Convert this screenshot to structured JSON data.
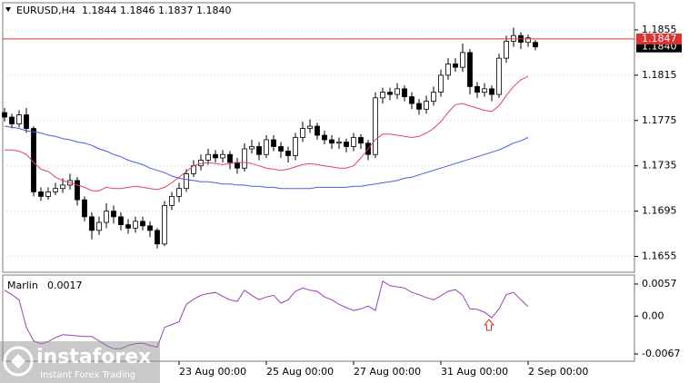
{
  "chart_data": [
    {
      "type": "candlestick",
      "title": "EURUSD,H4",
      "subtitle": "1.1844 1.1846 1.1837 1.1840",
      "up_color": "#ffffff",
      "down_color": "#000000",
      "edge_color": "#000000",
      "xlim": [
        -0.25,
        86.625
      ],
      "ylim": [
        1.1641,
        1.1879
      ],
      "yticks": [
        1.1655,
        1.1695,
        1.1735,
        1.1775,
        1.1815,
        1.1855
      ],
      "grid": true,
      "open": [
        1.1782,
        1.1778,
        1.1772,
        1.178,
        1.1768,
        1.1712,
        1.1708,
        1.1712,
        1.1715,
        1.1718,
        1.1722,
        1.1705,
        1.169,
        1.1678,
        1.1685,
        1.1695,
        1.169,
        1.1683,
        1.168,
        1.1686,
        1.1682,
        1.1678,
        1.1666,
        1.17,
        1.1708,
        1.1715,
        1.1728,
        1.1735,
        1.174,
        1.1745,
        1.1742,
        1.1745,
        1.1738,
        1.1733,
        1.175,
        1.1752,
        1.1745,
        1.1758,
        1.1752,
        1.1748,
        1.1744,
        1.176,
        1.1768,
        1.177,
        1.1762,
        1.1758,
        1.1755,
        1.1756,
        1.1752,
        1.176,
        1.1755,
        1.1745,
        1.1795,
        1.18,
        1.1798,
        1.1803,
        1.1796,
        1.179,
        1.1785,
        1.1792,
        1.18,
        1.1815,
        1.1825,
        1.1822,
        1.1835,
        1.1805,
        1.18,
        1.1803,
        1.1798,
        1.183,
        1.1845,
        1.185,
        1.1844,
        1.1844
      ],
      "high": [
        1.1786,
        1.1781,
        1.1784,
        1.1786,
        1.177,
        1.1716,
        1.1716,
        1.172,
        1.1724,
        1.1728,
        1.1725,
        1.1708,
        1.1694,
        1.169,
        1.1702,
        1.17,
        1.1694,
        1.1688,
        1.169,
        1.169,
        1.1686,
        1.168,
        1.1704,
        1.1712,
        1.172,
        1.1732,
        1.174,
        1.1745,
        1.175,
        1.1749,
        1.1749,
        1.1748,
        1.1742,
        1.1755,
        1.1758,
        1.1756,
        1.1762,
        1.1762,
        1.1756,
        1.1752,
        1.1764,
        1.1774,
        1.1776,
        1.1773,
        1.1766,
        1.1762,
        1.176,
        1.1759,
        1.1764,
        1.1763,
        1.1758,
        1.18,
        1.1804,
        1.1804,
        1.1808,
        1.1806,
        1.18,
        1.1794,
        1.1797,
        1.1805,
        1.182,
        1.183,
        1.183,
        1.1843,
        1.1838,
        1.1809,
        1.1808,
        1.1806,
        1.1834,
        1.185,
        1.1857,
        1.1853,
        1.1851,
        1.1846
      ],
      "low": [
        1.1774,
        1.1768,
        1.1769,
        1.1764,
        1.1708,
        1.1704,
        1.1705,
        1.1709,
        1.1711,
        1.1714,
        1.17,
        1.1686,
        1.167,
        1.1674,
        1.168,
        1.1684,
        1.1678,
        1.1675,
        1.1676,
        1.1678,
        1.1672,
        1.1662,
        1.1664,
        1.1696,
        1.1703,
        1.1712,
        1.1725,
        1.1731,
        1.1736,
        1.1738,
        1.1738,
        1.1732,
        1.1728,
        1.173,
        1.1746,
        1.174,
        1.1742,
        1.1748,
        1.1742,
        1.1738,
        1.174,
        1.1756,
        1.1764,
        1.1758,
        1.1754,
        1.175,
        1.175,
        1.1747,
        1.1748,
        1.175,
        1.174,
        1.1742,
        1.179,
        1.1793,
        1.1794,
        1.1792,
        1.1785,
        1.178,
        1.1781,
        1.1788,
        1.1796,
        1.1811,
        1.1818,
        1.1818,
        1.1798,
        1.1795,
        1.1796,
        1.1792,
        1.1795,
        1.1826,
        1.184,
        1.1838,
        1.184,
        1.1837
      ],
      "close": [
        1.1778,
        1.1772,
        1.178,
        1.1768,
        1.1712,
        1.1708,
        1.1712,
        1.1715,
        1.1718,
        1.1722,
        1.1705,
        1.169,
        1.1678,
        1.1685,
        1.1695,
        1.169,
        1.1683,
        1.168,
        1.1686,
        1.1682,
        1.1678,
        1.1666,
        1.17,
        1.1708,
        1.1715,
        1.1728,
        1.1735,
        1.174,
        1.1745,
        1.1742,
        1.1745,
        1.1738,
        1.1733,
        1.175,
        1.1752,
        1.1745,
        1.1758,
        1.1752,
        1.1748,
        1.1744,
        1.176,
        1.1768,
        1.177,
        1.1762,
        1.1758,
        1.1755,
        1.1756,
        1.1752,
        1.176,
        1.1755,
        1.1745,
        1.1795,
        1.18,
        1.1798,
        1.1803,
        1.1796,
        1.179,
        1.1785,
        1.1792,
        1.18,
        1.1815,
        1.1825,
        1.1822,
        1.1835,
        1.1805,
        1.18,
        1.1803,
        1.1798,
        1.183,
        1.1845,
        1.185,
        1.1844,
        1.1848,
        1.184
      ],
      "series": [
        {
          "color": "#e2445c",
          "values": [
            1.1749,
            1.1749,
            1.1748,
            1.1745,
            1.1738,
            1.1732,
            1.173,
            1.1725,
            1.1722,
            1.172,
            1.1718,
            1.1716,
            1.1713,
            1.1713,
            1.1716,
            1.1715,
            1.1715,
            1.1716,
            1.1717,
            1.1716,
            1.1715,
            1.1714,
            1.1716,
            1.172,
            1.1725,
            1.173,
            1.1735,
            1.1737,
            1.1738,
            1.1737,
            1.1736,
            1.1737,
            1.1738,
            1.1738,
            1.1737,
            1.1735,
            1.1733,
            1.1732,
            1.1731,
            1.1732,
            1.1734,
            1.1736,
            1.1737,
            1.1736,
            1.1735,
            1.1734,
            1.1733,
            1.1733,
            1.1735,
            1.1742,
            1.175,
            1.1758,
            1.1763,
            1.1763,
            1.1762,
            1.1761,
            1.176,
            1.1761,
            1.1764,
            1.1768,
            1.1774,
            1.1782,
            1.1789,
            1.179,
            1.1788,
            1.1786,
            1.1784,
            1.1783,
            1.1788,
            1.1797,
            1.1805,
            1.1811,
            1.1814,
            null
          ]
        },
        {
          "color": "#4a5ae8",
          "values": [
            1.177,
            1.1769,
            1.1768,
            1.1766,
            1.1765,
            1.1764,
            1.1762,
            1.1761,
            1.1759,
            1.1758,
            1.1756,
            1.1755,
            1.1753,
            1.175,
            1.1748,
            1.1745,
            1.1743,
            1.174,
            1.1738,
            1.1736,
            1.1733,
            1.1731,
            1.1729,
            1.1726,
            1.1724,
            1.1723,
            1.1722,
            1.1721,
            1.1721,
            1.172,
            1.1719,
            1.1719,
            1.1718,
            1.1718,
            1.1717,
            1.1717,
            1.1716,
            1.1716,
            1.1715,
            1.1715,
            1.1715,
            1.1715,
            1.1715,
            1.1716,
            1.1716,
            1.1716,
            1.1716,
            1.1716,
            1.1717,
            1.1717,
            1.1718,
            1.1719,
            1.172,
            1.1721,
            1.1722,
            1.1724,
            1.1725,
            1.1727,
            1.1729,
            1.1731,
            1.1733,
            1.1735,
            1.1737,
            1.1739,
            1.1741,
            1.1743,
            1.1745,
            1.1747,
            1.1749,
            1.1752,
            1.1755,
            1.1757,
            1.176,
            null
          ]
        }
      ],
      "hline": {
        "value": 1.1847,
        "color": "#e03030"
      },
      "last_price": {
        "value": 1.184,
        "label": "1.1840"
      }
    },
    {
      "type": "line",
      "title": "Marlin",
      "subtitle": 0.0017,
      "xlim": [
        -0.25,
        86.625
      ],
      "ylim": [
        -0.008,
        0.0073
      ],
      "yticks": [
        -0.0067,
        {
          "value": 0,
          "label": "0.00"
        },
        0.0057
      ],
      "xticks": [
        {
          "value": 24,
          "label": "23 Aug 00:00"
        },
        {
          "value": 36,
          "label": "25 Aug 00:00"
        },
        {
          "value": 48,
          "label": "27 Aug 00:00"
        },
        {
          "value": 60,
          "label": "31 Aug 00:00"
        },
        {
          "value": 72,
          "label": "2 Sep 00:00"
        }
      ],
      "series": [
        {
          "color": "#9b3fb5",
          "values": [
            0.0046,
            0.0038,
            0.0029,
            -0.002,
            -0.0044,
            -0.0049,
            -0.0045,
            -0.0038,
            -0.0033,
            -0.0034,
            -0.0035,
            -0.0036,
            -0.0036,
            -0.0044,
            -0.0052,
            -0.0058,
            -0.0058,
            -0.0052,
            -0.0049,
            -0.0048,
            -0.0052,
            -0.0055,
            -0.002,
            -0.0015,
            -0.001,
            0.0021,
            0.003,
            0.0037,
            0.004,
            0.0042,
            0.0035,
            0.0029,
            0.0026,
            0.0046,
            0.0037,
            0.0029,
            0.0034,
            0.0037,
            0.0023,
            0.0029,
            0.0044,
            0.005,
            0.0046,
            0.0044,
            0.0034,
            0.0029,
            0.0021,
            0.0015,
            0.001,
            0.0013,
            0.0018,
            0.001,
            0.0062,
            0.0054,
            0.0052,
            0.005,
            0.0042,
            0.0038,
            0.0033,
            0.0029,
            0.0036,
            0.0044,
            0.0047,
            0.0037,
            0.0013,
            0.0012,
            0.0007,
            -0.0003,
            0.0013,
            0.0038,
            0.0042,
            0.0029,
            0.0017,
            null
          ]
        }
      ]
    }
  ],
  "watermark": {
    "brand": "instaforex",
    "tagline": "Instant Forex Trading"
  }
}
